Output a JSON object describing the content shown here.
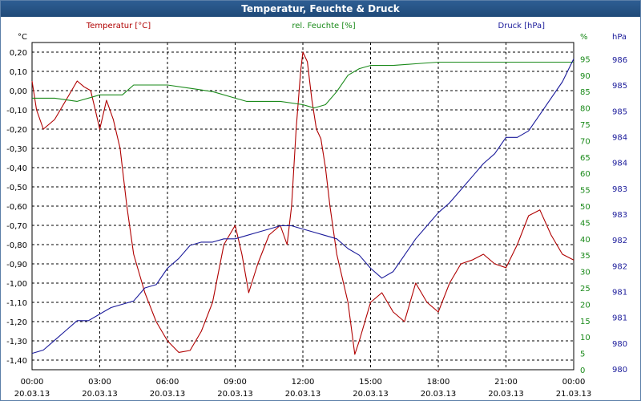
{
  "window": {
    "title": "Temperatur, Feuchte & Druck"
  },
  "colors": {
    "temperature": "#b00000",
    "humidity": "#1a8a1a",
    "pressure": "#1a1a9a",
    "grid": "#000000"
  },
  "chart_data": {
    "type": "line",
    "title": "Temperatur, Feuchte & Druck",
    "grid": true,
    "x_ticks": [
      {
        "time": "00:00",
        "date": "20.03.13"
      },
      {
        "time": "03:00",
        "date": "20.03.13"
      },
      {
        "time": "06:00",
        "date": "20.03.13"
      },
      {
        "time": "09:00",
        "date": "20.03.13"
      },
      {
        "time": "12:00",
        "date": "20.03.13"
      },
      {
        "time": "15:00",
        "date": "20.03.13"
      },
      {
        "time": "18:00",
        "date": "20.03.13"
      },
      {
        "time": "21:00",
        "date": "20.03.13"
      },
      {
        "time": "00:00",
        "date": "21.03.13"
      }
    ],
    "xlim": [
      0,
      24
    ],
    "axes": {
      "left": {
        "unit": "°C",
        "ylim": [
          -1.45,
          0.25
        ],
        "ticks": [
          "0,20",
          "0,10",
          "0,00",
          "-0,10",
          "-0,20",
          "-0,30",
          "-0,40",
          "-0,50",
          "-0,60",
          "-0,70",
          "-0,80",
          "-0,90",
          "-1,00",
          "-1,10",
          "-1,20",
          "-1,30",
          "-1,40"
        ],
        "tick_values": [
          0.2,
          0.1,
          0.0,
          -0.1,
          -0.2,
          -0.3,
          -0.4,
          -0.5,
          -0.6,
          -0.7,
          -0.8,
          -0.9,
          -1.0,
          -1.1,
          -1.2,
          -1.3,
          -1.4
        ]
      },
      "humidity": {
        "unit": "%",
        "ylim": [
          0,
          100
        ],
        "ticks": [
          "95",
          "90",
          "85",
          "80",
          "75",
          "70",
          "65",
          "60",
          "55",
          "50",
          "45",
          "40",
          "35",
          "30",
          "25",
          "20",
          "15",
          "10",
          "5",
          "0"
        ],
        "tick_values": [
          95,
          90,
          85,
          80,
          75,
          70,
          65,
          60,
          55,
          50,
          45,
          40,
          35,
          30,
          25,
          20,
          15,
          10,
          5,
          0
        ]
      },
      "pressure": {
        "unit": "hPa",
        "ticks": [
          "986",
          "985",
          "985",
          "984",
          "984",
          "983",
          "983",
          "982",
          "982",
          "981",
          "981",
          "980",
          "980"
        ]
      }
    },
    "series": [
      {
        "name": "Temperatur [°C]",
        "axis": "left",
        "x": [
          0,
          0.2,
          0.5,
          1.0,
          1.5,
          2.0,
          2.3,
          2.6,
          2.8,
          3.0,
          3.3,
          3.6,
          3.9,
          4.2,
          4.5,
          5.0,
          5.5,
          6.0,
          6.5,
          7.0,
          7.5,
          8.0,
          8.5,
          9.0,
          9.3,
          9.6,
          10.0,
          10.5,
          11.0,
          11.3,
          11.5,
          11.7,
          11.9,
          12.0,
          12.2,
          12.4,
          12.6,
          12.8,
          13.0,
          13.2,
          13.5,
          14.0,
          14.3,
          14.5,
          15.0,
          15.5,
          16.0,
          16.5,
          17.0,
          17.5,
          18.0,
          18.5,
          19.0,
          19.5,
          20.0,
          20.5,
          21.0,
          21.5,
          22.0,
          22.5,
          23.0,
          23.5,
          24.0
        ],
        "y": [
          0.05,
          -0.1,
          -0.2,
          -0.15,
          -0.05,
          0.05,
          0.02,
          0.0,
          -0.1,
          -0.2,
          -0.05,
          -0.15,
          -0.3,
          -0.6,
          -0.85,
          -1.05,
          -1.2,
          -1.3,
          -1.36,
          -1.35,
          -1.25,
          -1.1,
          -0.8,
          -0.7,
          -0.85,
          -1.05,
          -0.9,
          -0.75,
          -0.7,
          -0.8,
          -0.6,
          -0.2,
          0.1,
          0.2,
          0.15,
          -0.05,
          -0.2,
          -0.25,
          -0.4,
          -0.6,
          -0.85,
          -1.1,
          -1.37,
          -1.3,
          -1.1,
          -1.05,
          -1.15,
          -1.2,
          -1.0,
          -1.1,
          -1.15,
          -1.0,
          -0.9,
          -0.88,
          -0.85,
          -0.9,
          -0.92,
          -0.8,
          -0.65,
          -0.62,
          -0.75,
          -0.85,
          -0.88
        ]
      },
      {
        "name": "rel. Feuchte [%]",
        "axis": "humidity",
        "x": [
          0,
          1,
          2,
          3,
          4,
          4.5,
          5,
          6,
          7,
          8,
          9,
          9.5,
          10,
          11,
          12,
          12.5,
          13,
          13.5,
          14,
          14.5,
          15,
          16,
          17,
          18,
          19,
          20,
          21,
          22,
          23,
          24
        ],
        "y": [
          83,
          83,
          82,
          84,
          84,
          87,
          87,
          87,
          86,
          85,
          83,
          82,
          82,
          82,
          81,
          80,
          81,
          85,
          90,
          92,
          93,
          93,
          93.5,
          94,
          94,
          94,
          94,
          94,
          94,
          94
        ]
      },
      {
        "name": "Druck [hPa]",
        "axis": "pressure",
        "x": [
          0,
          0.5,
          1,
          1.5,
          2,
          2.5,
          3,
          3.5,
          4,
          4.5,
          5,
          5.5,
          6,
          6.5,
          7,
          7.5,
          8,
          8.5,
          9,
          9.5,
          10,
          10.5,
          11,
          11.5,
          12,
          12.5,
          13,
          13.5,
          14,
          14.5,
          15,
          15.5,
          16,
          16.5,
          17,
          17.5,
          18,
          18.5,
          19,
          19.5,
          20,
          20.5,
          21,
          21.5,
          22,
          22.5,
          23,
          23.5,
          24
        ],
        "y": [
          5,
          6,
          9,
          12,
          15,
          15,
          17,
          19,
          20,
          21,
          25,
          26,
          31,
          34,
          38,
          39,
          39,
          40,
          40,
          41,
          42,
          43,
          44,
          44,
          43,
          42,
          41,
          40,
          37,
          35,
          31,
          28,
          30,
          35,
          40,
          44,
          48,
          51,
          55,
          59,
          63,
          66,
          71,
          71,
          73,
          78,
          83,
          88,
          95
        ]
      }
    ]
  }
}
